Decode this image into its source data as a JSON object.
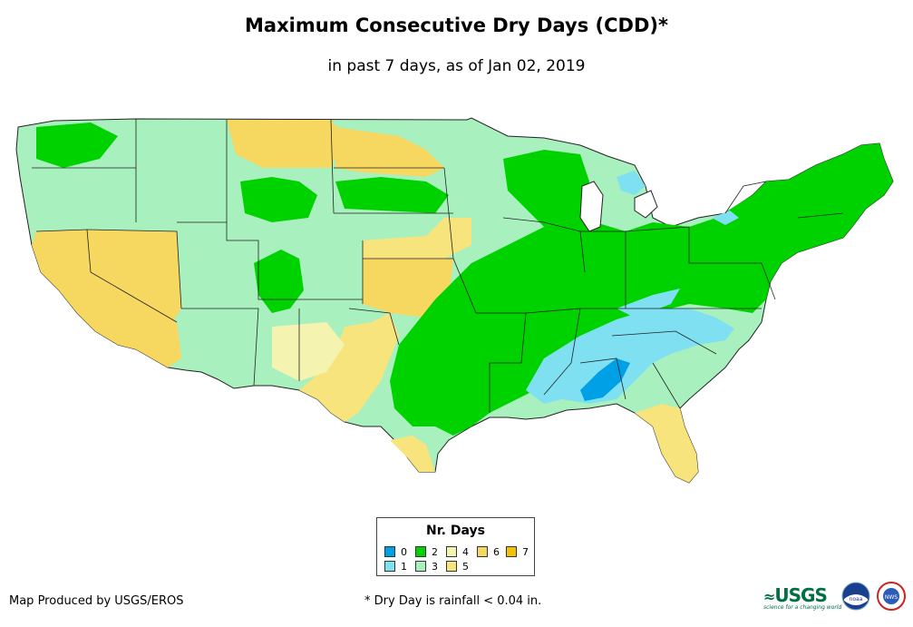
{
  "title": "Maximum Consecutive Dry Days (CDD)*",
  "subtitle": "in past 7 days, as of Jan 02, 2019",
  "legend": {
    "title": "Nr. Days",
    "items": [
      {
        "label": "0",
        "color": "#00a0e6"
      },
      {
        "label": "1",
        "color": "#7fe0f2"
      },
      {
        "label": "2",
        "color": "#00d200"
      },
      {
        "label": "3",
        "color": "#a8f0be"
      },
      {
        "label": "4",
        "color": "#f4f4b0"
      },
      {
        "label": "5",
        "color": "#f8e47c"
      },
      {
        "label": "6",
        "color": "#f6d860"
      },
      {
        "label": "7",
        "color": "#f4c000"
      }
    ]
  },
  "credit": "Map Produced by USGS/EROS",
  "footnote": "* Dry Day is rainfall < 0.04 in.",
  "logos": {
    "usgs": "USGS",
    "usgs_tagline": "science for a changing world",
    "noaa": "noaa",
    "nws": "NWS"
  }
}
